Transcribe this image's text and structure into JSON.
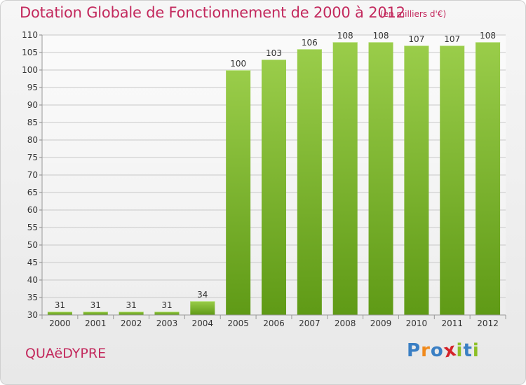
{
  "header": {
    "title": "Dotation Globale de Fonctionnement de 2000 à 2012",
    "unit": "(en milliers d'€)"
  },
  "footer": {
    "commune": "QUAëDYPRE",
    "logo_letters": [
      "P",
      "r",
      "o",
      "x",
      "i",
      "t",
      "i"
    ],
    "logo_colors": [
      "#3a7fc4",
      "#f08a1c",
      "#3a7fc4",
      "#d4232a",
      "#8cbf26",
      "#3a7fc4",
      "#8cbf26"
    ]
  },
  "colors": {
    "bar_top": "#9acd4a",
    "bar_bottom": "#5f9a16",
    "grid": "#c8c8c8",
    "axis_text": "#333333"
  },
  "chart_data": {
    "type": "bar",
    "categories": [
      "2000",
      "2001",
      "2002",
      "2003",
      "2004",
      "2005",
      "2006",
      "2007",
      "2008",
      "2009",
      "2010",
      "2011",
      "2012"
    ],
    "values": [
      31,
      31,
      31,
      31,
      34,
      100,
      103,
      106,
      108,
      108,
      107,
      107,
      108
    ],
    "data_labels": [
      "31",
      "31",
      "31",
      "31",
      "34",
      "100",
      "103",
      "106",
      "108",
      "108",
      "107",
      "107",
      "108"
    ],
    "ylim": [
      30,
      110
    ],
    "yticks": [
      30,
      35,
      40,
      45,
      50,
      55,
      60,
      65,
      70,
      75,
      80,
      85,
      90,
      95,
      100,
      105,
      110
    ],
    "grid": true
  }
}
